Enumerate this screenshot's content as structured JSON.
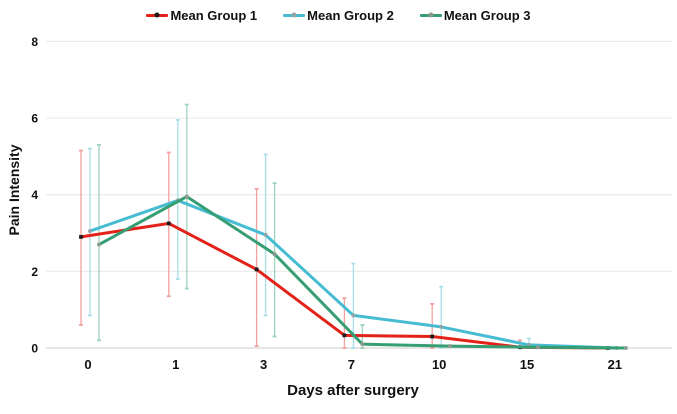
{
  "chart_data": {
    "type": "line",
    "title": "",
    "xlabel": "Days after surgery",
    "ylabel": "Pain Intensity",
    "x_categories": [
      "0",
      "1",
      "3",
      "7",
      "10",
      "15",
      "21"
    ],
    "y_ticks": [
      0,
      2,
      4,
      6,
      8
    ],
    "ylim": [
      0,
      8
    ],
    "grid": "horizontal",
    "legend_position": "top-center",
    "error_bars": true,
    "series": [
      {
        "name": "Mean Group 1",
        "color": "#e32219",
        "marker": "square",
        "marker_color": "#1c1c1c",
        "err_color": "#f2a19e",
        "x_offset": -7,
        "means": [
          2.9,
          3.25,
          2.05,
          0.33,
          0.3,
          0.02,
          0
        ],
        "err_lo": [
          0.6,
          1.35,
          0.05,
          0,
          0,
          0,
          null
        ],
        "err_hi": [
          5.15,
          5.1,
          4.15,
          1.3,
          1.15,
          0.2,
          null
        ]
      },
      {
        "name": "Mean Group 2",
        "color": "#45bcd2",
        "marker": "circle",
        "marker_color": "#95a5a8",
        "err_color": "#aadfe9",
        "x_offset": 2,
        "means": [
          3.05,
          3.85,
          2.95,
          0.85,
          0.55,
          0.08,
          0
        ],
        "err_lo": [
          0.85,
          1.8,
          0.85,
          0,
          0,
          0,
          null
        ],
        "err_hi": [
          5.2,
          5.95,
          5.05,
          2.2,
          1.6,
          0.25,
          null
        ]
      },
      {
        "name": "Mean Group 3",
        "color": "#369e73",
        "marker": "circle",
        "marker_color": "#8b9b92",
        "err_color": "#9ed4bd",
        "x_offset": 11,
        "means": [
          2.7,
          3.95,
          2.45,
          0.1,
          0.05,
          0.02,
          0
        ],
        "err_lo": [
          0.2,
          1.55,
          0.3,
          0,
          null,
          null,
          null
        ],
        "err_hi": [
          5.3,
          6.35,
          4.3,
          0.6,
          null,
          null,
          null
        ]
      }
    ],
    "style": {
      "grid_color": "#ededed",
      "axis_line_color": "#d7d7d7",
      "text_color": "#111111",
      "background": "#ffffff"
    }
  }
}
